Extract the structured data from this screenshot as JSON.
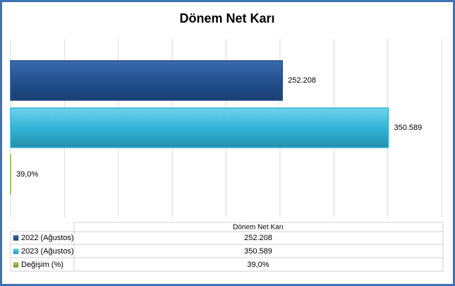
{
  "chart_data": {
    "type": "barh",
    "title": "Dönem Net Karı",
    "table_header": "Dönem Net Karı",
    "xlim": [
      0,
      400000
    ],
    "xticks": [
      0,
      50000,
      100000,
      150000,
      200000,
      250000,
      300000,
      350000,
      400000
    ],
    "grid": true,
    "series": [
      {
        "name": "2022 (Ağustos)",
        "color": "#24518f",
        "values": [
          252208
        ],
        "value_labels": [
          "252.208"
        ]
      },
      {
        "name": "2023 (Ağustos)",
        "color": "#33b4d6",
        "values": [
          350589
        ],
        "value_labels": [
          "350.589"
        ]
      },
      {
        "name": "Değişim (%)",
        "color": "#8db33a",
        "values": [
          39
        ],
        "value_labels": [
          "39,0%"
        ]
      }
    ]
  }
}
